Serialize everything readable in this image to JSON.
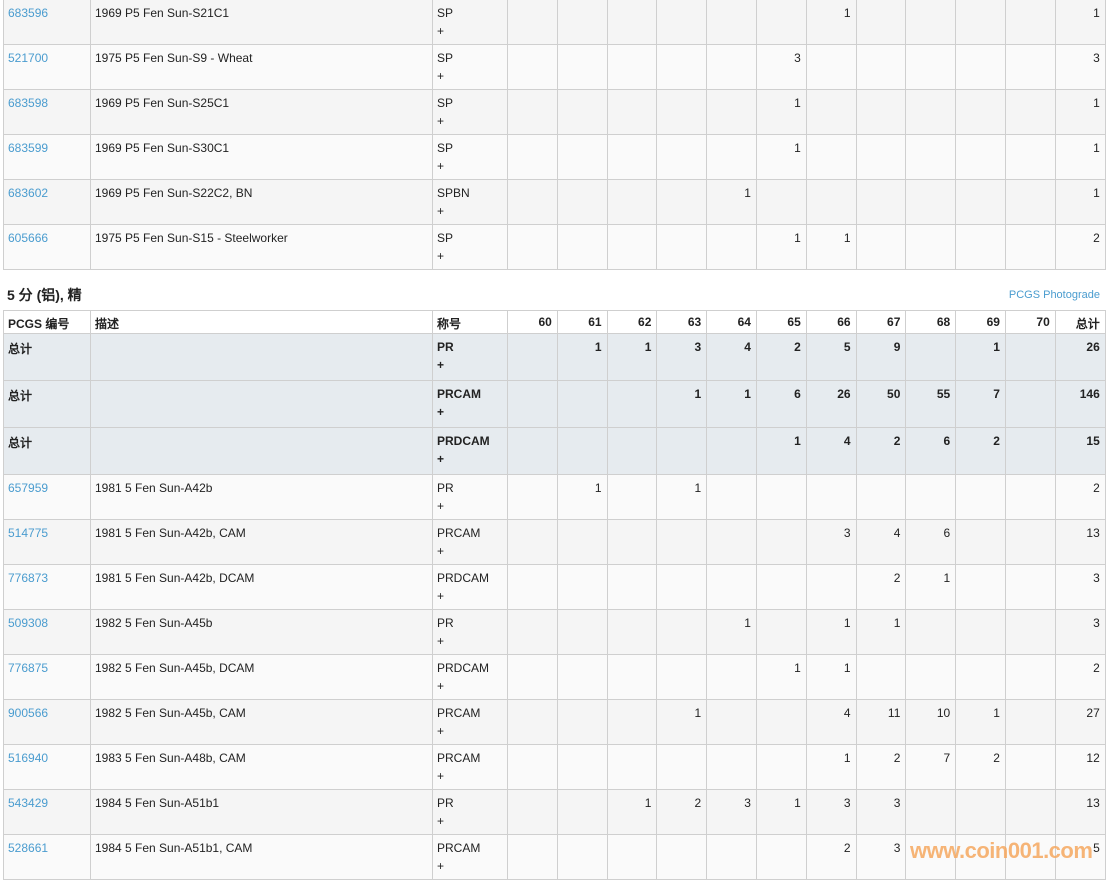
{
  "top_rows": [
    {
      "id": "683596",
      "desc": "1969 P5 Fen Sun-S21C1",
      "des": "SP",
      "plus": "+",
      "grades": [
        "",
        "",
        "",
        "",
        "",
        "",
        "1",
        "",
        "",
        "",
        ""
      ],
      "total": "1"
    },
    {
      "id": "521700",
      "desc": "1975 P5 Fen Sun-S9 - Wheat",
      "des": "SP",
      "plus": "+",
      "grades": [
        "",
        "",
        "",
        "",
        "",
        "3",
        "",
        "",
        "",
        "",
        ""
      ],
      "total": "3"
    },
    {
      "id": "683598",
      "desc": "1969 P5 Fen Sun-S25C1",
      "des": "SP",
      "plus": "+",
      "grades": [
        "",
        "",
        "",
        "",
        "",
        "1",
        "",
        "",
        "",
        "",
        ""
      ],
      "total": "1"
    },
    {
      "id": "683599",
      "desc": "1969 P5 Fen Sun-S30C1",
      "des": "SP",
      "plus": "+",
      "grades": [
        "",
        "",
        "",
        "",
        "",
        "1",
        "",
        "",
        "",
        "",
        ""
      ],
      "total": "1"
    },
    {
      "id": "683602",
      "desc": "1969 P5 Fen Sun-S22C2, BN",
      "des": "SPBN",
      "plus": "+",
      "grades": [
        "",
        "",
        "",
        "",
        "1",
        "",
        "",
        "",
        "",
        "",
        ""
      ],
      "total": "1"
    },
    {
      "id": "605666",
      "desc": "1975 P5 Fen Sun-S15 - Steelworker",
      "des": "SP",
      "plus": "+",
      "grades": [
        "",
        "",
        "",
        "",
        "",
        "1",
        "1",
        "",
        "",
        "",
        ""
      ],
      "total": "2"
    }
  ],
  "section": {
    "title": "5 分 (铝), 精",
    "photograde_link": "PCGS Photograde",
    "headers": {
      "id": "PCGS 编号",
      "desc": "描述",
      "des": "称号",
      "grades": [
        "60",
        "61",
        "62",
        "63",
        "64",
        "65",
        "66",
        "67",
        "68",
        "69",
        "70"
      ],
      "total": "总计"
    },
    "totals": [
      {
        "label": "总计",
        "des": "PR",
        "plus": "+",
        "grades": [
          "",
          "1",
          "1",
          "3",
          "4",
          "2",
          "5",
          "9",
          "",
          "1",
          ""
        ],
        "total": "26"
      },
      {
        "label": "总计",
        "des": "PRCAM",
        "plus": "+",
        "grades": [
          "",
          "",
          "",
          "1",
          "1",
          "6",
          "26",
          "50",
          "55",
          "7",
          ""
        ],
        "total": "146"
      },
      {
        "label": "总计",
        "des": "PRDCAM",
        "plus": "+",
        "grades": [
          "",
          "",
          "",
          "",
          "",
          "1",
          "4",
          "2",
          "6",
          "2",
          ""
        ],
        "total": "15"
      }
    ],
    "rows": [
      {
        "id": "657959",
        "desc": "1981 5 Fen Sun-A42b",
        "des": "PR",
        "plus": "+",
        "grades": [
          "",
          "1",
          "",
          "1",
          "",
          "",
          "",
          "",
          "",
          "",
          ""
        ],
        "total": "2"
      },
      {
        "id": "514775",
        "desc": "1981 5 Fen Sun-A42b, CAM",
        "des": "PRCAM",
        "plus": "+",
        "grades": [
          "",
          "",
          "",
          "",
          "",
          "",
          "3",
          "4",
          "6",
          "",
          ""
        ],
        "total": "13"
      },
      {
        "id": "776873",
        "desc": "1981 5 Fen Sun-A42b, DCAM",
        "des": "PRDCAM",
        "plus": "+",
        "grades": [
          "",
          "",
          "",
          "",
          "",
          "",
          "",
          "2",
          "1",
          "",
          ""
        ],
        "total": "3"
      },
      {
        "id": "509308",
        "desc": "1982 5 Fen Sun-A45b",
        "des": "PR",
        "plus": "+",
        "grades": [
          "",
          "",
          "",
          "",
          "1",
          "",
          "1",
          "1",
          "",
          "",
          ""
        ],
        "total": "3"
      },
      {
        "id": "776875",
        "desc": "1982 5 Fen Sun-A45b, DCAM",
        "des": "PRDCAM",
        "plus": "+",
        "grades": [
          "",
          "",
          "",
          "",
          "",
          "1",
          "1",
          "",
          "",
          "",
          ""
        ],
        "total": "2"
      },
      {
        "id": "900566",
        "desc": "1982 5 Fen Sun-A45b, CAM",
        "des": "PRCAM",
        "plus": "+",
        "grades": [
          "",
          "",
          "",
          "1",
          "",
          "",
          "4",
          "11",
          "10",
          "1",
          ""
        ],
        "total": "27"
      },
      {
        "id": "516940",
        "desc": "1983 5 Fen Sun-A48b, CAM",
        "des": "PRCAM",
        "plus": "+",
        "grades": [
          "",
          "",
          "",
          "",
          "",
          "",
          "1",
          "2",
          "7",
          "2",
          ""
        ],
        "total": "12"
      },
      {
        "id": "543429",
        "desc": "1984 5 Fen Sun-A51b1",
        "des": "PR",
        "plus": "+",
        "grades": [
          "",
          "",
          "1",
          "2",
          "3",
          "1",
          "3",
          "3",
          "",
          "",
          ""
        ],
        "total": "13"
      },
      {
        "id": "528661",
        "desc": "1984 5 Fen Sun-A51b1, CAM",
        "des": "PRCAM",
        "plus": "+",
        "grades": [
          "",
          "",
          "",
          "",
          "",
          "",
          "2",
          "3",
          "",
          "",
          ""
        ],
        "total": "5"
      }
    ]
  },
  "watermark": "www.coin001.com"
}
